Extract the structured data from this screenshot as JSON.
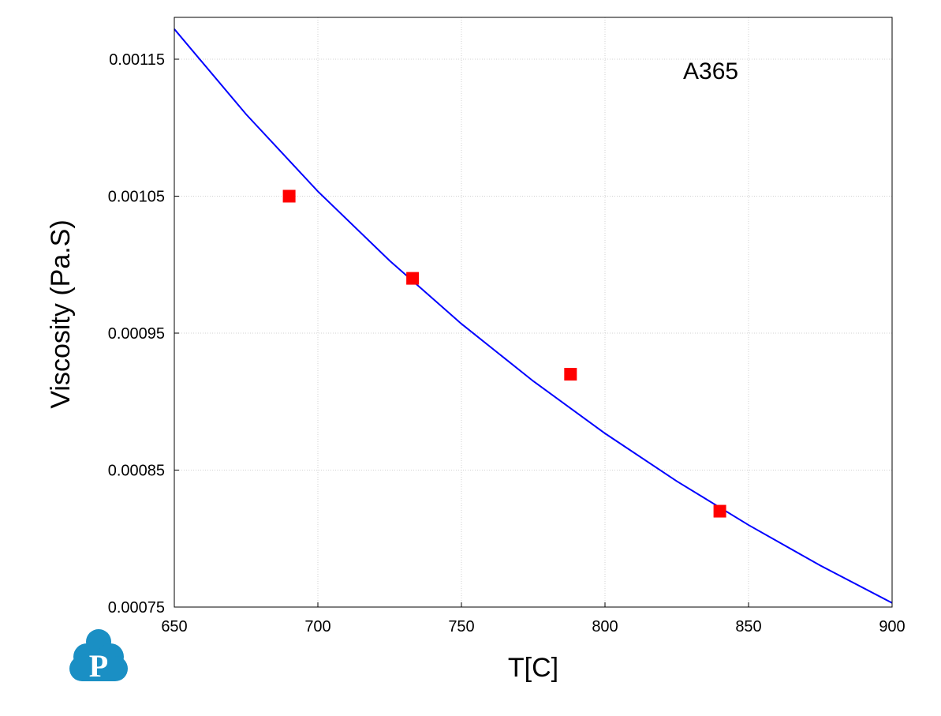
{
  "chart_data": {
    "type": "line+scatter",
    "annotation": "A365",
    "xlabel": "T[C]",
    "ylabel": "Viscosity (Pa.S)",
    "xlim": [
      650,
      900
    ],
    "ylim": [
      0.00075,
      0.00119
    ],
    "x_ticks": [
      "650",
      "700",
      "750",
      "800",
      "850",
      "900"
    ],
    "y_ticks": [
      "0.00075",
      "0.00085",
      "0.00095",
      "0.00105",
      "0.00115"
    ],
    "grid": true,
    "series": [
      {
        "type": "line",
        "color": "#0000ff",
        "x": [
          650,
          675,
          700,
          725,
          750,
          775,
          800,
          825,
          850,
          875,
          900
        ],
        "y": [
          0.001172,
          0.0011098,
          0.0010535,
          0.0010029,
          0.0009568,
          0.000915,
          0.0008768,
          0.0008419,
          0.0008099,
          0.0007803,
          0.000753
        ]
      },
      {
        "type": "scatter",
        "color": "#ff0000",
        "marker": "square",
        "x": [
          690,
          733,
          788,
          840
        ],
        "y": [
          0.00105,
          0.00099,
          0.00092,
          0.00082
        ]
      }
    ]
  },
  "logo": {
    "letter": "P",
    "color": "#1a8fc4"
  }
}
